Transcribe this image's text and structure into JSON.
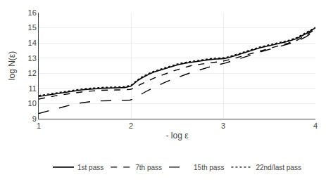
{
  "chart_data": {
    "type": "line",
    "xlabel": "- log ε",
    "ylabel": "log N(ε)",
    "xlim": [
      1,
      4
    ],
    "ylim": [
      9,
      16
    ],
    "xticks": [
      1,
      2,
      3,
      4
    ],
    "yticks": [
      9,
      10,
      11,
      12,
      13,
      14,
      15,
      16
    ],
    "grid": true,
    "legend": "bottom",
    "series": [
      {
        "name": "1st pass",
        "color": "#000000",
        "line_style": "solid",
        "x": [
          1.0,
          1.03,
          1.06,
          1.09,
          1.12,
          1.15,
          1.18,
          1.21,
          1.24,
          1.27,
          1.3,
          1.33,
          1.36,
          1.39,
          1.42,
          1.45,
          1.48,
          1.51,
          1.54,
          1.57,
          1.6,
          1.63,
          1.66,
          1.69,
          1.72,
          1.75,
          1.78,
          1.81,
          1.84,
          1.87,
          1.89,
          1.91,
          1.93,
          1.94,
          1.95,
          1.96,
          1.97,
          1.98,
          1.99,
          2.0,
          2.02,
          2.05,
          2.08,
          2.12,
          2.16,
          2.2,
          2.25,
          2.3,
          2.35,
          2.4,
          2.45,
          2.48,
          2.5,
          2.52,
          2.54,
          2.56,
          2.58,
          2.6,
          2.65,
          2.7,
          2.75,
          2.8,
          2.85,
          2.9,
          2.93,
          2.95,
          2.97,
          2.99,
          3.01,
          3.05,
          3.1,
          3.15,
          3.2,
          3.3,
          3.4,
          3.5,
          3.6,
          3.7,
          3.8,
          3.9,
          4.0
        ],
        "values": [
          10.47,
          10.5,
          10.53,
          10.56,
          10.59,
          10.62,
          10.65,
          10.68,
          10.71,
          10.74,
          10.77,
          10.8,
          10.83,
          10.85,
          10.87,
          10.89,
          10.91,
          10.93,
          10.95,
          10.97,
          10.98,
          10.99,
          11.0,
          11.01,
          11.02,
          11.03,
          11.04,
          11.04,
          11.05,
          11.05,
          11.05,
          11.05,
          11.05,
          11.06,
          11.07,
          11.08,
          11.09,
          11.1,
          11.11,
          11.15,
          11.25,
          11.4,
          11.55,
          11.7,
          11.83,
          11.95,
          12.08,
          12.18,
          12.28,
          12.38,
          12.47,
          12.52,
          12.55,
          12.58,
          12.61,
          12.63,
          12.65,
          12.67,
          12.72,
          12.77,
          12.82,
          12.87,
          12.9,
          12.93,
          12.94,
          12.95,
          12.95,
          12.95,
          12.97,
          13.02,
          13.1,
          13.2,
          13.3,
          13.5,
          13.68,
          13.82,
          13.95,
          14.1,
          14.3,
          14.62,
          15.0
        ]
      },
      {
        "name": "7th pass",
        "color": "#000000",
        "line_style": "dash",
        "x": [
          1.0,
          1.03,
          1.06,
          1.09,
          1.12,
          1.15,
          1.18,
          1.21,
          1.24,
          1.27,
          1.3,
          1.33,
          1.36,
          1.39,
          1.42,
          1.45,
          1.48,
          1.51,
          1.54,
          1.57,
          1.6,
          1.63,
          1.66,
          1.69,
          1.72,
          1.75,
          1.78,
          1.81,
          1.84,
          1.87,
          1.89,
          1.91,
          1.93,
          1.95,
          1.97,
          1.99,
          2.01,
          2.05,
          2.1,
          2.15,
          2.2,
          2.25,
          2.3,
          2.35,
          2.4,
          2.45,
          2.5,
          2.55,
          2.6,
          2.65,
          2.7,
          2.75,
          2.8,
          2.85,
          2.9,
          2.95,
          3.0,
          3.1,
          3.2,
          3.3,
          3.4,
          3.5,
          3.6,
          3.7,
          3.8,
          3.9,
          4.0
        ],
        "values": [
          10.3,
          10.34,
          10.37,
          10.41,
          10.44,
          10.47,
          10.51,
          10.54,
          10.57,
          10.6,
          10.63,
          10.66,
          10.69,
          10.72,
          10.74,
          10.76,
          10.78,
          10.8,
          10.82,
          10.83,
          10.85,
          10.86,
          10.87,
          10.88,
          10.89,
          10.89,
          10.9,
          10.9,
          10.9,
          10.9,
          10.9,
          10.9,
          10.9,
          10.91,
          10.92,
          10.93,
          10.97,
          11.08,
          11.25,
          11.4,
          11.55,
          11.68,
          11.8,
          11.92,
          12.02,
          12.13,
          12.23,
          12.32,
          12.42,
          12.5,
          12.55,
          12.6,
          12.65,
          12.68,
          12.72,
          12.76,
          12.8,
          12.95,
          13.12,
          13.3,
          13.48,
          13.65,
          13.82,
          13.98,
          14.18,
          14.52,
          14.92
        ]
      },
      {
        "name": "15th pass",
        "color": "#000000",
        "line_style": "longdash",
        "x": [
          1.0,
          1.03,
          1.06,
          1.09,
          1.12,
          1.15,
          1.18,
          1.21,
          1.24,
          1.27,
          1.3,
          1.33,
          1.36,
          1.39,
          1.42,
          1.45,
          1.48,
          1.51,
          1.54,
          1.57,
          1.6,
          1.63,
          1.66,
          1.69,
          1.72,
          1.75,
          1.78,
          1.81,
          1.84,
          1.87,
          1.9,
          1.93,
          1.96,
          1.99,
          2.02,
          2.07,
          2.12,
          2.17,
          2.22,
          2.27,
          2.32,
          2.37,
          2.42,
          2.47,
          2.52,
          2.57,
          2.62,
          2.67,
          2.72,
          2.77,
          2.82,
          2.87,
          2.92,
          2.97,
          3.02,
          3.1,
          3.2,
          3.3,
          3.4,
          3.5,
          3.6,
          3.7,
          3.8,
          3.9,
          4.0
        ],
        "values": [
          9.35,
          9.4,
          9.45,
          9.5,
          9.55,
          9.6,
          9.65,
          9.7,
          9.75,
          9.8,
          9.85,
          9.9,
          9.95,
          9.98,
          10.01,
          10.04,
          10.07,
          10.1,
          10.12,
          10.14,
          10.16,
          10.17,
          10.18,
          10.19,
          10.19,
          10.2,
          10.2,
          10.2,
          10.2,
          10.2,
          10.2,
          10.21,
          10.22,
          10.23,
          10.3,
          10.48,
          10.65,
          10.82,
          10.98,
          11.13,
          11.27,
          11.4,
          11.53,
          11.65,
          11.77,
          11.88,
          11.98,
          12.08,
          12.18,
          12.28,
          12.37,
          12.45,
          12.53,
          12.6,
          12.67,
          12.82,
          13.0,
          13.2,
          13.4,
          13.58,
          13.75,
          13.92,
          14.1,
          14.42,
          14.82
        ]
      },
      {
        "name": "22nd/last pass",
        "color": "#000000",
        "line_style": "dot",
        "x": [
          1.0,
          1.03,
          1.06,
          1.09,
          1.12,
          1.15,
          1.18,
          1.21,
          1.24,
          1.27,
          1.3,
          1.33,
          1.36,
          1.39,
          1.42,
          1.45,
          1.48,
          1.51,
          1.54,
          1.57,
          1.6,
          1.63,
          1.66,
          1.69,
          1.72,
          1.75,
          1.78,
          1.81,
          1.84,
          1.87,
          1.89,
          1.91,
          1.93,
          1.94,
          1.95,
          1.96,
          1.97,
          1.98,
          1.99,
          2.0,
          2.02,
          2.05,
          2.08,
          2.12,
          2.16,
          2.2,
          2.25,
          2.3,
          2.35,
          2.4,
          2.45,
          2.48,
          2.5,
          2.52,
          2.54,
          2.56,
          2.58,
          2.6,
          2.65,
          2.7,
          2.75,
          2.8,
          2.85,
          2.9,
          2.93,
          2.95,
          2.97,
          2.99,
          3.01,
          3.05,
          3.1,
          3.15,
          3.2,
          3.3,
          3.4,
          3.5,
          3.6,
          3.7,
          3.8,
          3.9,
          4.0
        ],
        "values": [
          10.53,
          10.56,
          10.59,
          10.62,
          10.65,
          10.68,
          10.71,
          10.74,
          10.77,
          10.8,
          10.83,
          10.86,
          10.89,
          10.91,
          10.93,
          10.95,
          10.97,
          10.99,
          11.01,
          11.03,
          11.04,
          11.05,
          11.06,
          11.07,
          11.08,
          11.09,
          11.1,
          11.1,
          11.11,
          11.11,
          11.11,
          11.11,
          11.11,
          11.12,
          11.13,
          11.14,
          11.15,
          11.16,
          11.17,
          11.21,
          11.31,
          11.46,
          11.61,
          11.76,
          11.89,
          12.01,
          12.14,
          12.24,
          12.34,
          12.44,
          12.53,
          12.58,
          12.61,
          12.64,
          12.67,
          12.69,
          12.71,
          12.73,
          12.78,
          12.83,
          12.88,
          12.93,
          12.96,
          12.99,
          13.0,
          13.01,
          13.01,
          13.01,
          13.03,
          13.08,
          13.16,
          13.26,
          13.36,
          13.56,
          13.74,
          13.88,
          14.01,
          14.16,
          14.36,
          14.68,
          15.03
        ]
      }
    ]
  }
}
